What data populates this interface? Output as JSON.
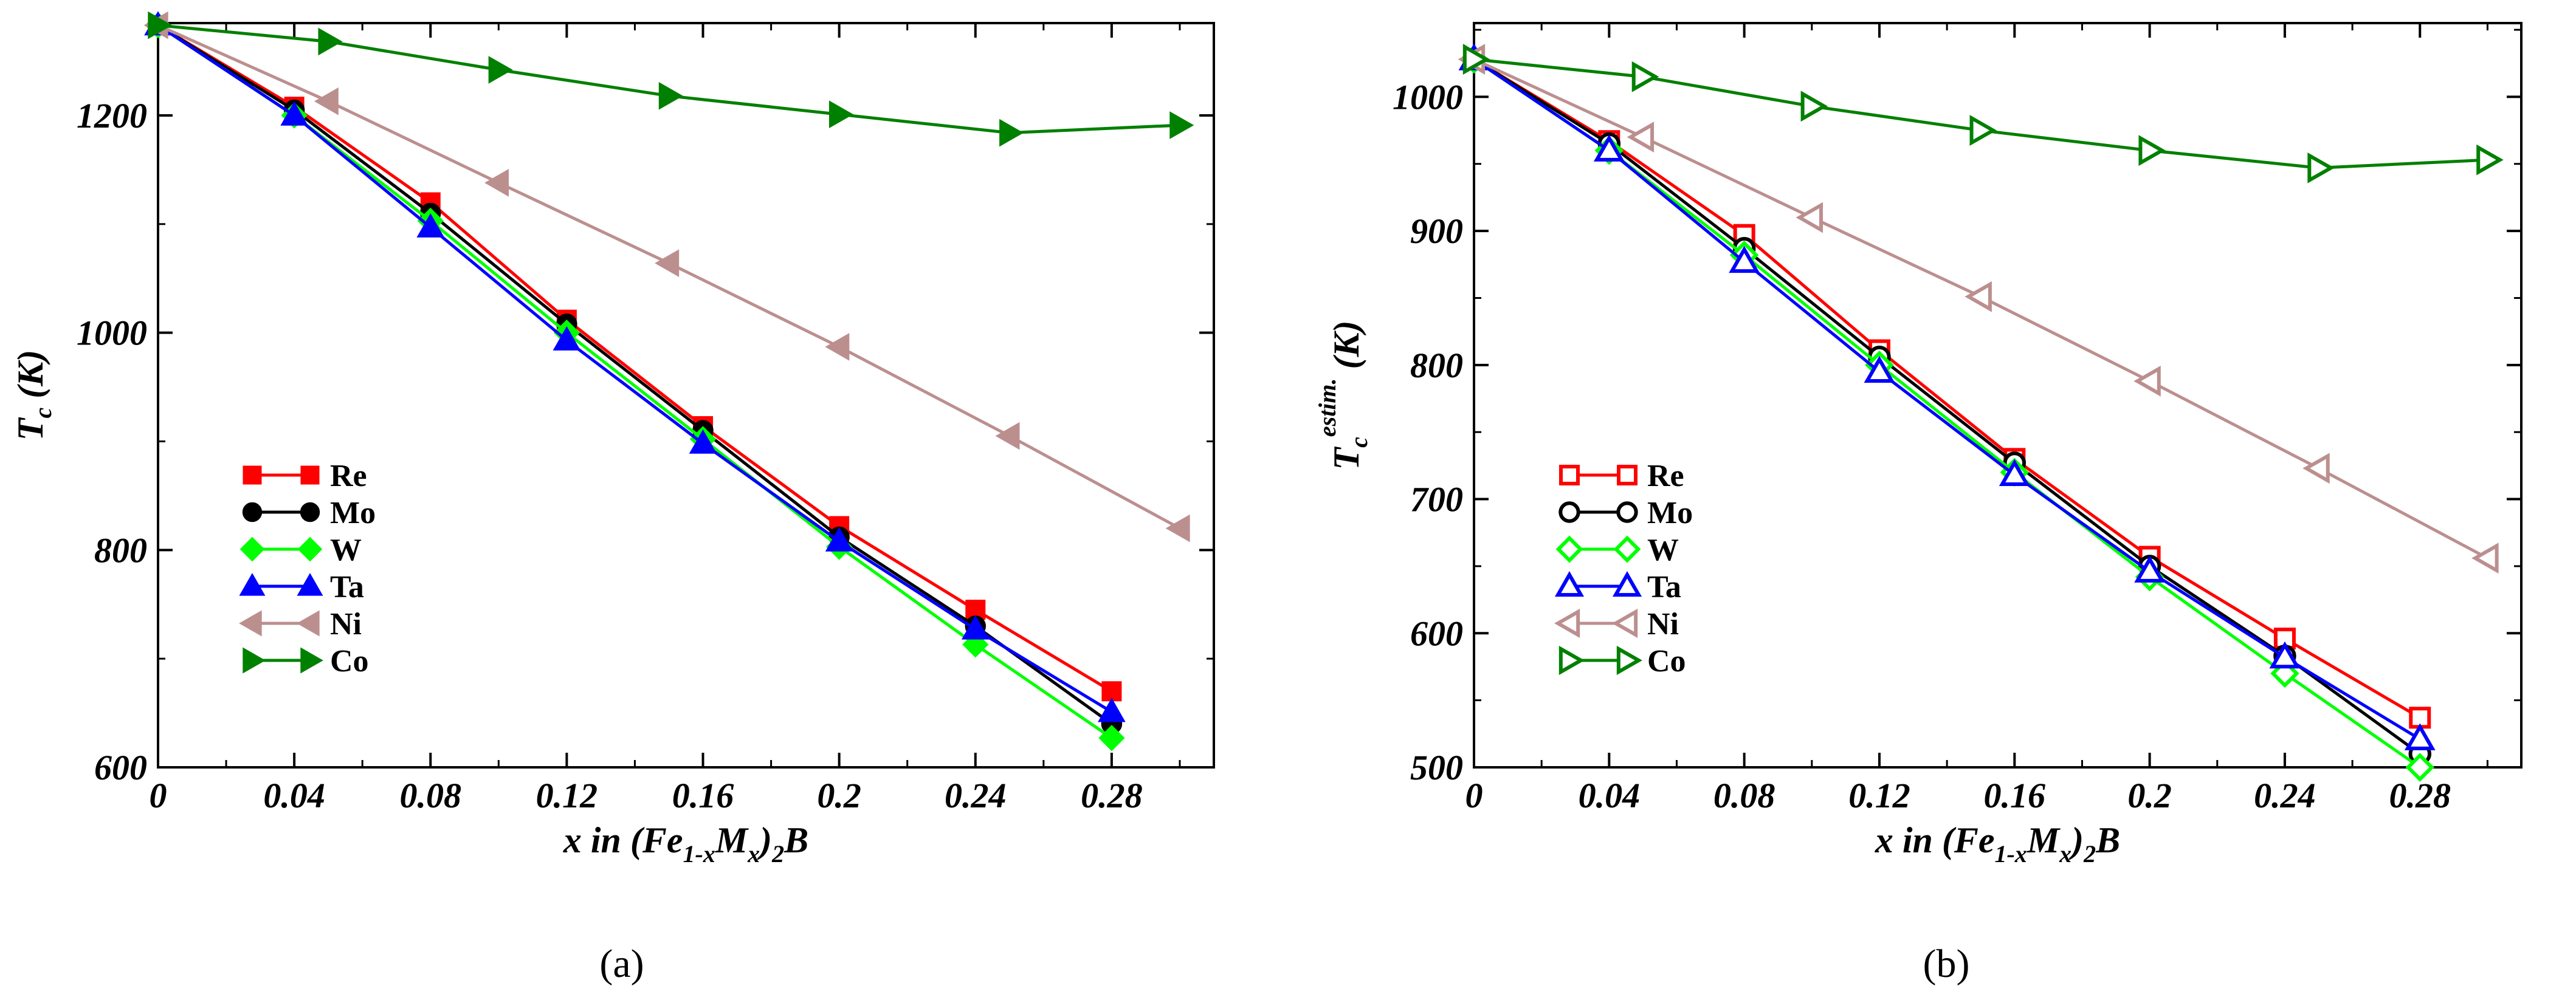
{
  "chart_data": [
    {
      "type": "line",
      "panel_label": "a",
      "ylabel_main": "T",
      "ylabel_sub": "c",
      "ylabel_sup": "",
      "ylabel_unit": "(K)",
      "xlabel_parts": [
        "x in (Fe",
        "1-x",
        "M",
        "x",
        ")",
        "2",
        "B"
      ],
      "xlim": [
        0,
        0.31
      ],
      "ylim": [
        600,
        1285
      ],
      "x_tick_labels": [
        "0",
        "0.04",
        "0.08",
        "0.12",
        "0.16",
        "0.2",
        "0.24",
        "0.28"
      ],
      "x_tick_values": [
        0,
        0.04,
        0.08,
        0.12,
        0.16,
        0.2,
        0.24,
        0.28
      ],
      "y_tick_values": [
        600,
        800,
        1000,
        1200
      ],
      "y_tick_labels": [
        "600",
        "800",
        "1000",
        "1200"
      ],
      "marker_fill": "filled",
      "series": [
        {
          "name": "Re",
          "color": "#ff0000",
          "marker": "square",
          "x": [
            0,
            0.04,
            0.08,
            0.12,
            0.16,
            0.2,
            0.24,
            0.28
          ],
          "y": [
            1283,
            1208,
            1120,
            1012,
            914,
            822,
            745,
            670
          ]
        },
        {
          "name": "Mo",
          "color": "#000000",
          "marker": "circle",
          "x": [
            0,
            0.04,
            0.08,
            0.12,
            0.16,
            0.2,
            0.24,
            0.28
          ],
          "y": [
            1283,
            1205,
            1110,
            1008,
            910,
            812,
            730,
            640
          ]
        },
        {
          "name": "W",
          "color": "#00ff00",
          "marker": "diamond",
          "x": [
            0,
            0.04,
            0.08,
            0.12,
            0.16,
            0.2,
            0.24,
            0.28
          ],
          "y": [
            1283,
            1200,
            1103,
            1000,
            902,
            803,
            713,
            627
          ]
        },
        {
          "name": "Ta",
          "color": "#0000ff",
          "marker": "triangle-up",
          "x": [
            0,
            0.04,
            0.08,
            0.12,
            0.16,
            0.2,
            0.24,
            0.28
          ],
          "y": [
            1283,
            1200,
            1097,
            993,
            898,
            808,
            727,
            651
          ]
        },
        {
          "name": "Ni",
          "color": "#bc8f8f",
          "marker": "triangle-left",
          "x": [
            0,
            0.05,
            0.1,
            0.15,
            0.2,
            0.25,
            0.3
          ],
          "y": [
            1283,
            1213,
            1138,
            1064,
            987,
            905,
            820
          ]
        },
        {
          "name": "Co",
          "color": "#008000",
          "marker": "triangle-right",
          "x": [
            0,
            0.05,
            0.1,
            0.15,
            0.2,
            0.25,
            0.3
          ],
          "y": [
            1283,
            1268,
            1242,
            1218,
            1201,
            1184,
            1191
          ]
        }
      ]
    },
    {
      "type": "line",
      "panel_label": "b",
      "ylabel_main": "T",
      "ylabel_sub": "c",
      "ylabel_sup": "estim.",
      "ylabel_unit": "(K)",
      "xlabel_parts": [
        "x in (Fe",
        "1-x",
        "M",
        "x",
        ")",
        "2",
        "B"
      ],
      "xlim": [
        0,
        0.31
      ],
      "ylim": [
        500,
        1055
      ],
      "x_tick_labels": [
        "0",
        "0.04",
        "0.08",
        "0.12",
        "0.16",
        "0.2",
        "0.24",
        "0.28"
      ],
      "x_tick_values": [
        0,
        0.04,
        0.08,
        0.12,
        0.16,
        0.2,
        0.24,
        0.28
      ],
      "y_tick_values": [
        500,
        600,
        700,
        800,
        900,
        1000
      ],
      "y_tick_labels": [
        "500",
        "600",
        "700",
        "800",
        "900",
        "1000"
      ],
      "marker_fill": "open",
      "series": [
        {
          "name": "Re",
          "color": "#ff0000",
          "marker": "square",
          "x": [
            0,
            0.04,
            0.08,
            0.12,
            0.16,
            0.2,
            0.24,
            0.28
          ],
          "y": [
            1028,
            967,
            897,
            811,
            730,
            657,
            596,
            537
          ]
        },
        {
          "name": "Mo",
          "color": "#000000",
          "marker": "circle",
          "x": [
            0,
            0.04,
            0.08,
            0.12,
            0.16,
            0.2,
            0.24,
            0.28
          ],
          "y": [
            1028,
            965,
            887,
            806,
            727,
            650,
            583,
            510
          ]
        },
        {
          "name": "W",
          "color": "#00ff00",
          "marker": "diamond",
          "x": [
            0,
            0.04,
            0.08,
            0.12,
            0.16,
            0.2,
            0.24,
            0.28
          ],
          "y": [
            1028,
            960,
            882,
            800,
            720,
            642,
            570,
            500
          ]
        },
        {
          "name": "Ta",
          "color": "#0000ff",
          "marker": "triangle-up",
          "x": [
            0,
            0.04,
            0.08,
            0.12,
            0.16,
            0.2,
            0.24,
            0.28
          ],
          "y": [
            1028,
            960,
            877,
            795,
            718,
            646,
            582,
            521
          ]
        },
        {
          "name": "Ni",
          "color": "#bc8f8f",
          "marker": "triangle-left",
          "x": [
            0,
            0.05,
            0.1,
            0.15,
            0.2,
            0.25,
            0.3
          ],
          "y": [
            1028,
            970,
            910,
            851,
            788,
            723,
            656
          ]
        },
        {
          "name": "Co",
          "color": "#008000",
          "marker": "triangle-right",
          "x": [
            0,
            0.05,
            0.1,
            0.15,
            0.2,
            0.25,
            0.3
          ],
          "y": [
            1028,
            1015,
            993,
            975,
            960,
            947,
            953
          ]
        }
      ]
    }
  ],
  "captions": [
    "(a)",
    "(b)"
  ]
}
